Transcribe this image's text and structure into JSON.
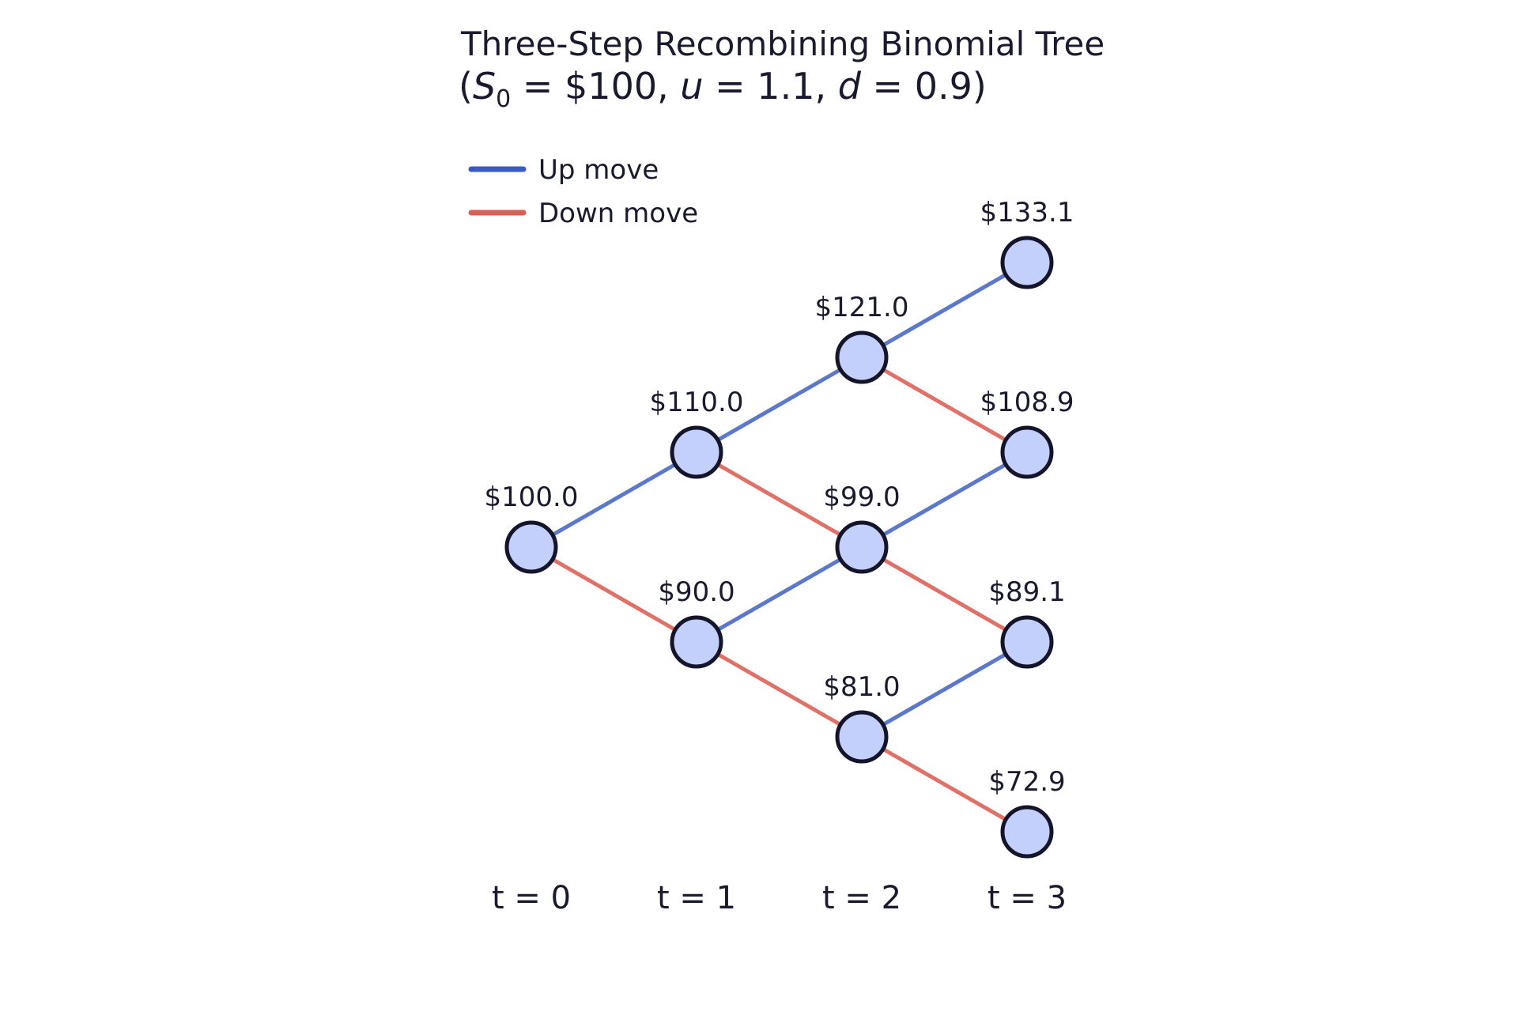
{
  "title": {
    "line1": "Three-Step Recombining Binomial Tree",
    "line2_prefix": "(",
    "s_symbol": "S",
    "s_subscript": "0",
    "eq1": " = $100, ",
    "u_symbol": "u",
    "eq2": " = 1.1, ",
    "d_symbol": "d",
    "eq3": " = 0.9)"
  },
  "legend": {
    "up_label": "Up move",
    "down_label": "Down move"
  },
  "colors": {
    "up": "#5b78c9",
    "up_legend": "#3b5bc4",
    "down": "#df7268",
    "down_legend": "#d95f55",
    "node_fill": "#c3d0fb",
    "node_stroke": "#14142a"
  },
  "time_labels": [
    "t = 0",
    "t = 1",
    "t = 2",
    "t = 3"
  ],
  "tree": {
    "steps": 3,
    "nodes": [
      {
        "step": 0,
        "downs": 0,
        "price": 100.0,
        "label": "$100.0"
      },
      {
        "step": 1,
        "downs": 0,
        "price": 110.0,
        "label": "$110.0"
      },
      {
        "step": 1,
        "downs": 1,
        "price": 90.0,
        "label": "$90.0"
      },
      {
        "step": 2,
        "downs": 0,
        "price": 121.0,
        "label": "$121.0"
      },
      {
        "step": 2,
        "downs": 1,
        "price": 99.0,
        "label": "$99.0"
      },
      {
        "step": 2,
        "downs": 2,
        "price": 81.0,
        "label": "$81.0"
      },
      {
        "step": 3,
        "downs": 0,
        "price": 133.1,
        "label": "$133.1"
      },
      {
        "step": 3,
        "downs": 1,
        "price": 108.9,
        "label": "$108.9"
      },
      {
        "step": 3,
        "downs": 2,
        "price": 89.1,
        "label": "$89.1"
      },
      {
        "step": 3,
        "downs": 3,
        "price": 72.9,
        "label": "$72.9"
      }
    ]
  }
}
